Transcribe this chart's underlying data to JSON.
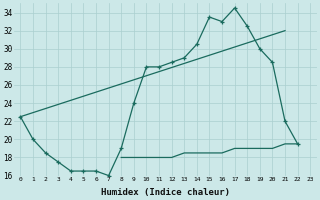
{
  "xlabel": "Humidex (Indice chaleur)",
  "bg_color": "#cce8e8",
  "grid_color": "#aacfcf",
  "line_color": "#1a6b5e",
  "x_min": 0,
  "x_max": 23,
  "y_min": 16,
  "y_max": 35,
  "main_line_x": [
    0,
    1,
    2,
    3,
    4,
    5,
    6,
    7,
    8,
    9,
    10,
    11,
    12,
    13,
    14,
    15,
    16,
    17,
    18,
    19,
    20,
    21,
    22
  ],
  "main_line_y": [
    22.5,
    20.0,
    18.5,
    17.5,
    16.5,
    16.5,
    16.5,
    16.0,
    19.0,
    24.0,
    28.0,
    28.0,
    28.5,
    29.0,
    30.5,
    33.5,
    33.0,
    34.5,
    32.5,
    30.0,
    28.5,
    22.0,
    19.5
  ],
  "diag_line_x": [
    0,
    21
  ],
  "diag_line_y": [
    22.5,
    32.0
  ],
  "flat_line_x": [
    8,
    9,
    10,
    11,
    12,
    13,
    14,
    15,
    16,
    17,
    18,
    19,
    20,
    21,
    22
  ],
  "flat_line_y": [
    18.0,
    18.0,
    18.0,
    18.0,
    18.0,
    18.5,
    18.5,
    18.5,
    18.5,
    19.0,
    19.0,
    19.0,
    19.0,
    19.5,
    19.5
  ],
  "yticks": [
    16,
    18,
    20,
    22,
    24,
    26,
    28,
    30,
    32,
    34
  ]
}
